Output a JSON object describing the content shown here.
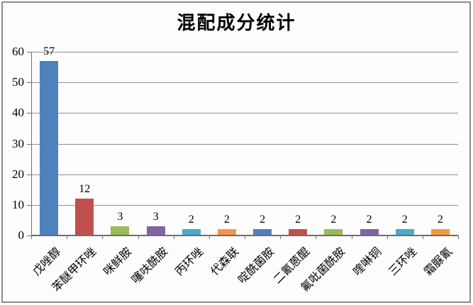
{
  "chart_data": {
    "type": "bar",
    "title": "混配成分统计",
    "categories": [
      "戊唑醇",
      "苯醚甲环唑",
      "咪鲜胺",
      "噻呋酰胺",
      "丙环唑",
      "代森联",
      "啶酰菌胺",
      "二氰蒽醌",
      "氟吡菌酰胺",
      "喹啉铜",
      "三环唑",
      "霜脲氰"
    ],
    "values": [
      57,
      12,
      3,
      3,
      2,
      2,
      2,
      2,
      2,
      2,
      2,
      2
    ],
    "value_labels": [
      "57",
      "12",
      "3",
      "3",
      "2",
      "2",
      "2",
      "2",
      "2",
      "2",
      "2",
      "2"
    ],
    "ytick_labels": [
      "0",
      "10",
      "20",
      "30",
      "40",
      "50",
      "60"
    ],
    "ylim": [
      0,
      60
    ],
    "ytick_step": 10,
    "xlabel": "",
    "ylabel": "",
    "grid": true,
    "legend": "none",
    "bar_color_cycle": [
      "#4f81bd",
      "#c0504d",
      "#9bbb59",
      "#8064a2",
      "#4bacc6",
      "#f79646"
    ],
    "gridline_color": "#8f8f8f",
    "axis_color": "#6e6e6e",
    "frame_border_color": "#8c8c8c",
    "background_color": "#fdfdfd"
  }
}
